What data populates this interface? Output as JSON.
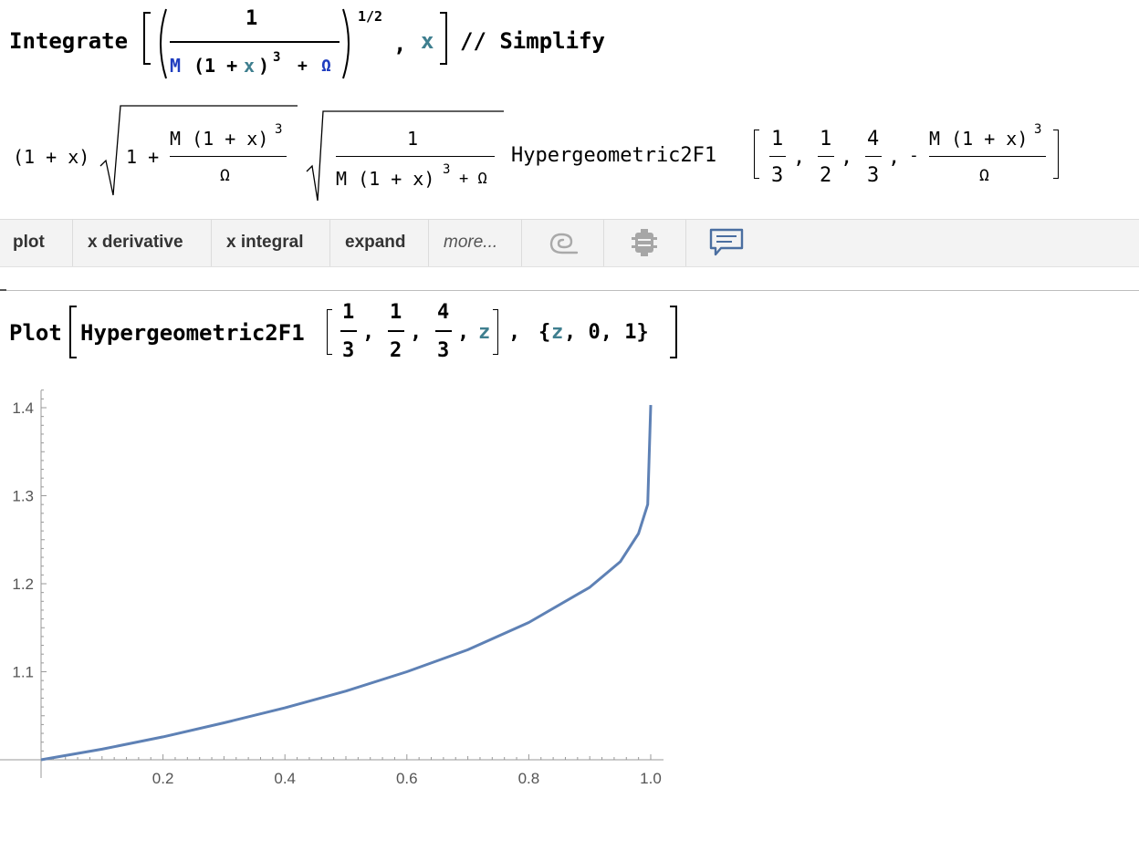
{
  "input1": {
    "func": "Integrate",
    "numerator": "1",
    "den_M": "M",
    "den_mid": "(1 +",
    "den_x": "x",
    "den_paren": ")",
    "den_exp": "3",
    "den_plus": "+",
    "den_omega": "Ω",
    "power": "1/2",
    "comma": ",",
    "var": "x",
    "postfix": "// Simplify"
  },
  "output1": {
    "factor": "(1 + x)",
    "sqrt1_lead": "1 +",
    "sqrt1_num": "M (1 + x)",
    "sqrt1_exp": "3",
    "sqrt1_den": "Ω",
    "sqrt2_num": "1",
    "sqrt2_den": "M (1 + x)",
    "sqrt2_exp": "3",
    "sqrt2_tail": "+ Ω",
    "func": "Hypergeometric2F1",
    "arg1_num": "1",
    "arg1_den": "3",
    "arg2_num": "1",
    "arg2_den": "2",
    "arg3_num": "4",
    "arg3_den": "3",
    "minus": "-",
    "arg4_num": "M (1 + x)",
    "arg4_exp": "3",
    "arg4_den": "Ω"
  },
  "toolbar": {
    "items": [
      {
        "label": "plot"
      },
      {
        "label": "x derivative"
      },
      {
        "label": "x integral"
      },
      {
        "label": "expand"
      },
      {
        "label": "more..."
      }
    ],
    "icons": [
      "wolfram-spiral-icon",
      "settings-icon",
      "comment-icon"
    ]
  },
  "input2": {
    "func": "Plot",
    "inner": "Hypergeometric2F1",
    "a_num": "1",
    "a_den": "3",
    "b_num": "1",
    "b_den": "2",
    "c_num": "4",
    "c_den": "3",
    "var": "z",
    "range_open": "{",
    "range_var": "z",
    "range_rest": ", 0, 1}"
  },
  "chart_data": {
    "type": "line",
    "series": [
      {
        "x": [
          0,
          0.1,
          0.2,
          0.3,
          0.4,
          0.5,
          0.6,
          0.7,
          0.8,
          0.9,
          0.95,
          0.98,
          0.995,
          1.0
        ],
        "y": [
          1.0,
          1.012,
          1.026,
          1.042,
          1.059,
          1.078,
          1.1,
          1.125,
          1.156,
          1.196,
          1.225,
          1.257,
          1.29,
          1.403
        ]
      }
    ],
    "xlim": [
      0,
      1.0
    ],
    "ylim": [
      1.0,
      1.42
    ],
    "xticks": [
      "0.2",
      "0.4",
      "0.6",
      "0.8",
      "1.0"
    ],
    "yticks": [
      "1.1",
      "1.2",
      "1.3",
      "1.4"
    ],
    "line_color": "#5e81b5",
    "grid": false
  }
}
